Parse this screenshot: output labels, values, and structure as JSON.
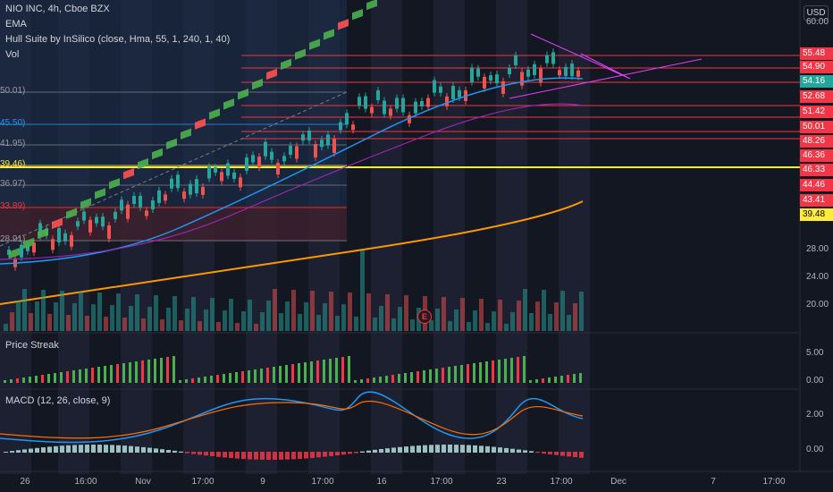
{
  "symbol": {
    "title": "NIO INC, 4h, Cboe BZX",
    "indicators": [
      "EMA",
      "Hull Suite by InSilico (close, Hma, 55, 1, 240, 1, 40)",
      "Vol"
    ]
  },
  "currency_button": "USD",
  "price_axis": {
    "scale_labels": [
      "60.00",
      "28.00",
      "24.00",
      "20.00"
    ],
    "price_tags": [
      {
        "value": "55.48",
        "bg": "#f23645",
        "fg": "#ffffff"
      },
      {
        "value": "54.90",
        "bg": "#f23645",
        "fg": "#ffffff"
      },
      {
        "value": "54.16",
        "bg": "#26a69a",
        "fg": "#ffffff"
      },
      {
        "value": "52.68",
        "bg": "#f23645",
        "fg": "#ffffff"
      },
      {
        "value": "51.42",
        "bg": "#f23645",
        "fg": "#ffffff"
      },
      {
        "value": "50.01",
        "bg": "#f23645",
        "fg": "#ffffff"
      },
      {
        "value": "48.26",
        "bg": "#f23645",
        "fg": "#ffffff"
      },
      {
        "value": "46.36",
        "bg": "#f23645",
        "fg": "#ffffff"
      },
      {
        "value": "46.33",
        "bg": "#f23645",
        "fg": "#ffffff"
      },
      {
        "value": "44.46",
        "bg": "#f23645",
        "fg": "#ffffff"
      },
      {
        "value": "43.41",
        "bg": "#f23645",
        "fg": "#ffffff"
      },
      {
        "value": "39.48",
        "bg": "#ffeb3b",
        "fg": "#000000"
      }
    ]
  },
  "fib_labels": [
    {
      "text": "50.01)",
      "color": "#9598a1"
    },
    {
      "text": "45.50)",
      "color": "#2196f3"
    },
    {
      "text": "41.95)",
      "color": "#9598a1"
    },
    {
      "text": "39.46)",
      "color": "#ffeb3b"
    },
    {
      "text": "36.97)",
      "color": "#9598a1"
    },
    {
      "text": "33.89)",
      "color": "#f23645"
    },
    {
      "text": "28.91)",
      "color": "#9598a1"
    }
  ],
  "earnings_marker": "E",
  "price_streak": {
    "title": "Price Streak",
    "scale_labels": [
      "5.00",
      "0.00"
    ]
  },
  "macd": {
    "title": "MACD (12, 26, close, 9)",
    "scale_labels": [
      "2.00",
      "0.00"
    ]
  },
  "time_axis": [
    "26",
    "16:00",
    "Nov",
    "17:00",
    "9",
    "17:00",
    "16",
    "17:00",
    "23",
    "17:00",
    "Dec",
    "7",
    "17:00"
  ],
  "colors": {
    "up": "#26a69a",
    "down": "#ef5350",
    "ema": "#ff9800",
    "hull_up": "#4caf50",
    "hull_down": "#ff5252",
    "macd": "#2196f3",
    "signal": "#ff6d00",
    "background": "#131722"
  }
}
